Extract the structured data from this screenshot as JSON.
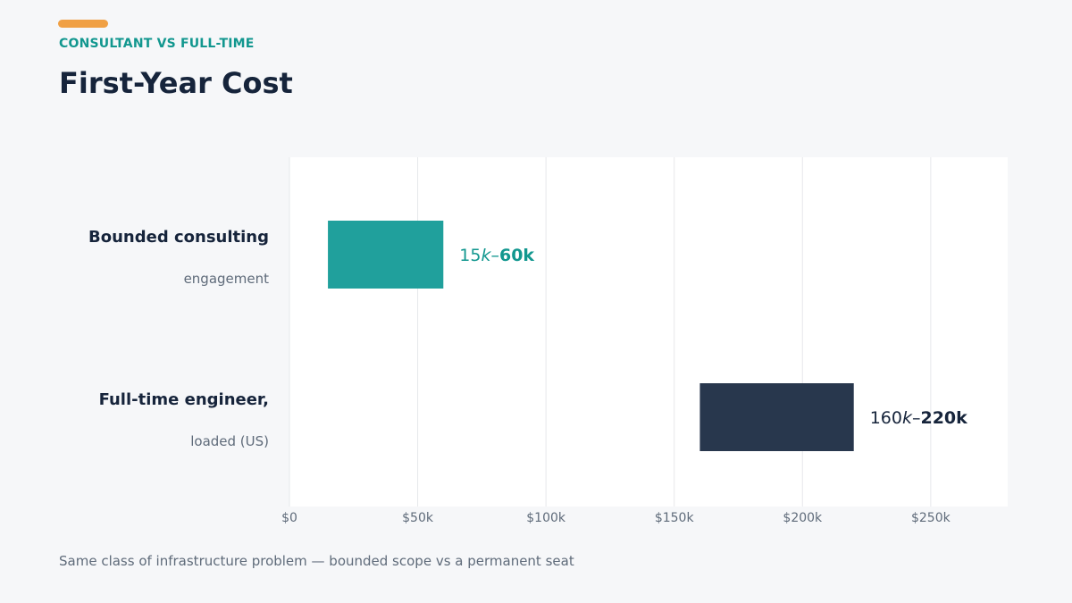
{
  "header": {
    "kicker": "CONSULTANT VS FULL-TIME",
    "title": "First-Year Cost"
  },
  "footnote": "Same class of infrastructure problem — bounded scope vs a permanent seat",
  "colors": {
    "accent": "#f0a044",
    "teal": "#20a09c",
    "navy": "#28374d",
    "teal_text": "#12978f",
    "navy_text": "#16243b"
  },
  "chart_data": {
    "type": "bar",
    "orientation": "horizontal",
    "xlim": [
      0,
      280000
    ],
    "xticks": [
      {
        "value": 0,
        "label": "$0"
      },
      {
        "value": 50000,
        "label": "$50k"
      },
      {
        "value": 100000,
        "label": "$100k"
      },
      {
        "value": 150000,
        "label": "$150k"
      },
      {
        "value": 200000,
        "label": "$200k"
      },
      {
        "value": 250000,
        "label": "$250k"
      }
    ],
    "grid": true,
    "bars": [
      {
        "category_line1": "Bounded consulting",
        "category_line2": "engagement",
        "min": 15000,
        "max": 60000,
        "label_parts": [
          {
            "text": "15",
            "style": "normal"
          },
          {
            "text": "k",
            "style": "italic"
          },
          {
            "text": "–",
            "style": "normal"
          },
          {
            "text": "60k",
            "style": "bold"
          }
        ],
        "color": "#20a09c",
        "label_color": "#12978f"
      },
      {
        "category_line1": "Full-time engineer,",
        "category_line2": "loaded (US)",
        "min": 160000,
        "max": 220000,
        "label_parts": [
          {
            "text": "160",
            "style": "normal"
          },
          {
            "text": "k",
            "style": "italic"
          },
          {
            "text": "–",
            "style": "normal"
          },
          {
            "text": "220k",
            "style": "bold"
          }
        ],
        "color": "#28374d",
        "label_color": "#16243b"
      }
    ]
  }
}
